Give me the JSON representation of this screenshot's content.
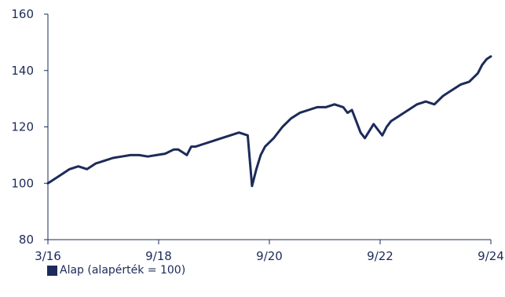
{
  "chart_data": {
    "type": "line",
    "x_ticks": [
      "3/16",
      "9/18",
      "9/20",
      "9/22",
      "9/24"
    ],
    "y_ticks": [
      "80",
      "100",
      "120",
      "140",
      "160"
    ],
    "ylim": [
      80,
      160
    ],
    "xlim": [
      "2016-03",
      "2024-09"
    ],
    "grid": false,
    "legend_position": "bottom-left",
    "colors": {
      "line": "#1c2b59",
      "axis": "#1c2b59",
      "text": "#1c2b59"
    },
    "series": [
      {
        "name": "Alap (alapérték = 100)",
        "x": [
          "2016-03",
          "2016-04",
          "2016-06",
          "2016-08",
          "2016-10",
          "2016-12",
          "2017-02",
          "2017-04",
          "2017-06",
          "2017-08",
          "2017-10",
          "2017-12",
          "2018-02",
          "2018-04",
          "2018-06",
          "2018-08",
          "2018-09",
          "2018-10",
          "2018-11",
          "2018-12",
          "2019-01",
          "2019-03",
          "2019-05",
          "2019-07",
          "2019-09",
          "2019-11",
          "2020-01",
          "2020-02",
          "2020-03",
          "2020-04",
          "2020-05",
          "2020-07",
          "2020-09",
          "2020-11",
          "2021-01",
          "2021-03",
          "2021-05",
          "2021-07",
          "2021-09",
          "2021-11",
          "2021-12",
          "2022-01",
          "2022-02",
          "2022-03",
          "2022-04",
          "2022-06",
          "2022-07",
          "2022-08",
          "2022-09",
          "2022-10",
          "2022-12",
          "2023-02",
          "2023-04",
          "2023-06",
          "2023-08",
          "2023-10",
          "2023-12",
          "2024-02",
          "2024-04",
          "2024-06",
          "2024-07",
          "2024-08",
          "2024-09"
        ],
        "values": [
          100,
          101,
          103,
          105,
          106,
          105,
          107,
          108,
          109,
          109.5,
          110,
          110,
          109.5,
          110,
          110.5,
          112,
          112,
          111,
          110,
          113,
          113,
          114,
          115,
          116,
          117,
          118,
          117,
          99,
          105,
          110,
          113,
          116,
          120,
          123,
          125,
          126,
          127,
          127,
          128,
          127,
          125,
          126,
          122,
          118,
          116,
          121,
          119,
          117,
          120,
          122,
          124,
          126,
          128,
          129,
          128,
          131,
          133,
          135,
          136,
          139,
          142,
          144,
          145
        ]
      }
    ]
  }
}
